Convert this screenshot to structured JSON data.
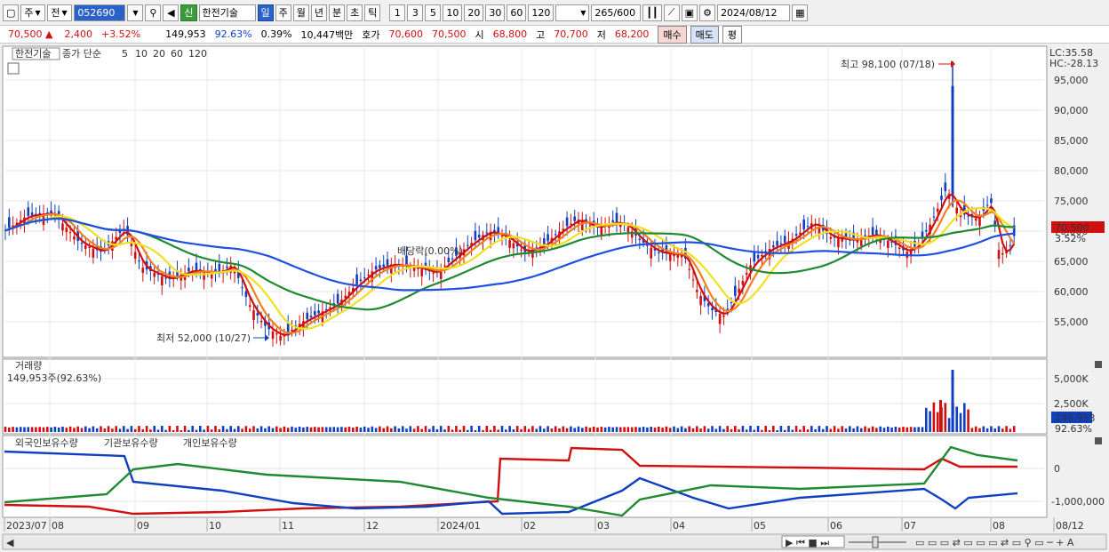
{
  "toolbar": {
    "market_mode": "주",
    "period_type": "전",
    "code": "052690",
    "badge": "신",
    "name": "한전기술",
    "tabs": [
      {
        "label": "일",
        "active": true
      },
      {
        "label": "주",
        "active": false
      },
      {
        "label": "월",
        "active": false
      },
      {
        "label": "년",
        "active": false
      },
      {
        "label": "분",
        "active": false
      },
      {
        "label": "초",
        "active": false
      },
      {
        "label": "틱",
        "active": false
      }
    ],
    "intervals": [
      "1",
      "3",
      "5",
      "10",
      "20",
      "30",
      "60",
      "120"
    ],
    "count": "265",
    "count_total": "/600",
    "date": "2024/08/12"
  },
  "quote": {
    "price": "70,500",
    "change": "2,400",
    "change_pct": "+3.52%",
    "volume": "149,953",
    "volume_pct": "92.63%",
    "turnover": "0.39%",
    "amount": "10,447백만",
    "ask_label": "호가",
    "ask": "70,600",
    "bid": "70,500",
    "open_label": "시",
    "open": "68,800",
    "high_label": "고",
    "high": "70,700",
    "low_label": "저",
    "low": "68,200",
    "buy_label": "매수",
    "sell_label": "매도",
    "eval_label": "평"
  },
  "price_panel": {
    "stock_chip": "한전기술",
    "legend_title": "종가 단순",
    "ma_labels": [
      "5",
      "10",
      "20",
      "60",
      "120"
    ],
    "lc": "LC:35.58",
    "hc": "HC:-28.13",
    "current_price": "70,500",
    "current_pct": "3.52%",
    "high_annot": "최고 98,100 (07/18)",
    "low_annot": "최저 52,000 (10/27)",
    "dividend_annot": "배당락(0.00%)",
    "y_labels": [
      "95,000",
      "90,000",
      "85,000",
      "80,000",
      "75,000",
      "70,000",
      "65,000",
      "60,000",
      "55,000"
    ]
  },
  "volume_panel": {
    "title": "거래량",
    "value": "149,953주(92.63%)",
    "y_labels": [
      "5,000K",
      "2,500K"
    ],
    "current": "149,953",
    "current_pct": "92.63%"
  },
  "holding_panel": {
    "legend": [
      "외국인보유수량",
      "기관보유수량",
      "개인보유수량"
    ],
    "y_labels": [
      "0",
      "-1,000,000"
    ]
  },
  "x_axis": [
    "2023/07",
    "08",
    "09",
    "10",
    "11",
    "12",
    "2024/01",
    "02",
    "03",
    "04",
    "05",
    "06",
    "07",
    "08",
    "08/12"
  ],
  "colors": {
    "up": "#d01010",
    "down": "#1040c0",
    "ma5": "#d01010",
    "ma10": "#f08020",
    "ma20": "#f0e020",
    "ma60": "#208a30",
    "ma120": "#2050e0"
  }
}
